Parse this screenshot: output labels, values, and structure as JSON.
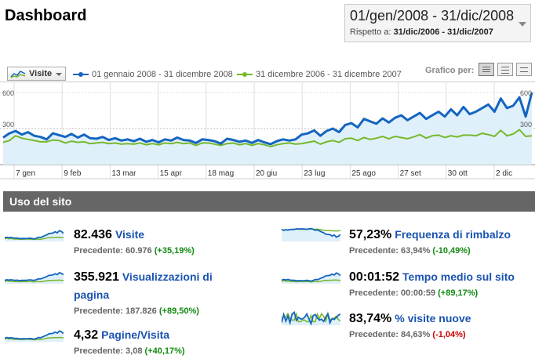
{
  "header": {
    "title": "Dashboard",
    "date_range": "01/gen/2008 - 31/dic/2008",
    "compare_label": "Rispetto a:",
    "compare_range": "31/dic/2006 - 31/dic/2007"
  },
  "chart_controls": {
    "metric": "Visite",
    "legend_current": "01 gennaio 2008 - 31 dicembre 2008",
    "legend_previous": "31 dicembre 2006 - 31 dicembre 2007",
    "graph_by_label": "Grafico per:",
    "view_icons": [
      "day-icon",
      "week-icon",
      "month-icon"
    ]
  },
  "colors": {
    "current": "#1565c0",
    "previous": "#76b82a",
    "fill": "#dff0fb"
  },
  "chart_data": {
    "type": "area",
    "ylim": [
      0,
      600
    ],
    "yticks": [
      "600",
      "300"
    ],
    "x_labels": [
      "7 gen",
      "9 feb",
      "13 mar",
      "15 apr",
      "18 mag",
      "20 giu",
      "23 lug",
      "25 ago",
      "27 set",
      "30 ott",
      "2 dic"
    ],
    "series": [
      {
        "name": "01 gennaio 2008 - 31 dicembre 2008",
        "values": [
          225,
          260,
          280,
          250,
          270,
          240,
          230,
          210,
          260,
          245,
          230,
          255,
          225,
          250,
          220,
          215,
          230,
          205,
          220,
          200,
          210,
          195,
          215,
          190,
          205,
          185,
          210,
          200,
          225,
          205,
          200,
          180,
          210,
          205,
          195,
          175,
          215,
          205,
          190,
          200,
          180,
          205,
          185,
          170,
          195,
          210,
          200,
          210,
          250,
          260,
          285,
          240,
          280,
          300,
          270,
          330,
          345,
          310,
          380,
          360,
          340,
          385,
          350,
          390,
          410,
          370,
          400,
          430,
          380,
          410,
          440,
          400,
          460,
          410,
          480,
          420,
          440,
          470,
          500,
          440,
          550,
          470,
          490,
          560,
          400,
          600
        ]
      },
      {
        "name": "31 dicembre 2006 - 31 dicembre 2007",
        "values": [
          185,
          200,
          240,
          220,
          210,
          200,
          190,
          190,
          205,
          200,
          180,
          195,
          185,
          190,
          175,
          180,
          185,
          175,
          180,
          170,
          175,
          170,
          180,
          165,
          175,
          165,
          180,
          175,
          185,
          175,
          180,
          160,
          180,
          180,
          170,
          160,
          175,
          180,
          165,
          175,
          160,
          175,
          165,
          150,
          165,
          175,
          180,
          170,
          175,
          185,
          195,
          170,
          190,
          200,
          185,
          215,
          220,
          200,
          225,
          210,
          220,
          235,
          215,
          235,
          225,
          215,
          230,
          250,
          220,
          240,
          245,
          225,
          240,
          230,
          245,
          245,
          240,
          260,
          250,
          235,
          285,
          240,
          255,
          290,
          235,
          240
        ]
      }
    ]
  },
  "section": {
    "title": "Uso del sito"
  },
  "metrics": [
    {
      "value": "82.436",
      "label": "Visite",
      "prev_label": "Precedente: 60.976",
      "change": "(+35,19%)",
      "dir": "pos"
    },
    {
      "value": "355.921",
      "label": "Visualizzazioni di pagina",
      "prev_label": "Precedente: 187.826",
      "change": "(+89,50%)",
      "dir": "pos"
    },
    {
      "value": "4,32",
      "label": "Pagine/Visita",
      "prev_label": "Precedente: 3,08",
      "change": "(+40,17%)",
      "dir": "pos"
    },
    {
      "value": "57,23%",
      "label": "Frequenza di rimbalzo",
      "prev_label": "Precedente: 63,94%",
      "change": "(-10,49%)",
      "dir": "pos"
    },
    {
      "value": "00:01:52",
      "label": "Tempo medio sul sito",
      "prev_label": "Precedente: 00:00:59",
      "change": "(+89,17%)",
      "dir": "pos"
    },
    {
      "value": "83,74%",
      "label": "% visite nuove",
      "prev_label": "Precedente: 84,63%",
      "change": "(-1,04%)",
      "dir": "neg"
    }
  ]
}
